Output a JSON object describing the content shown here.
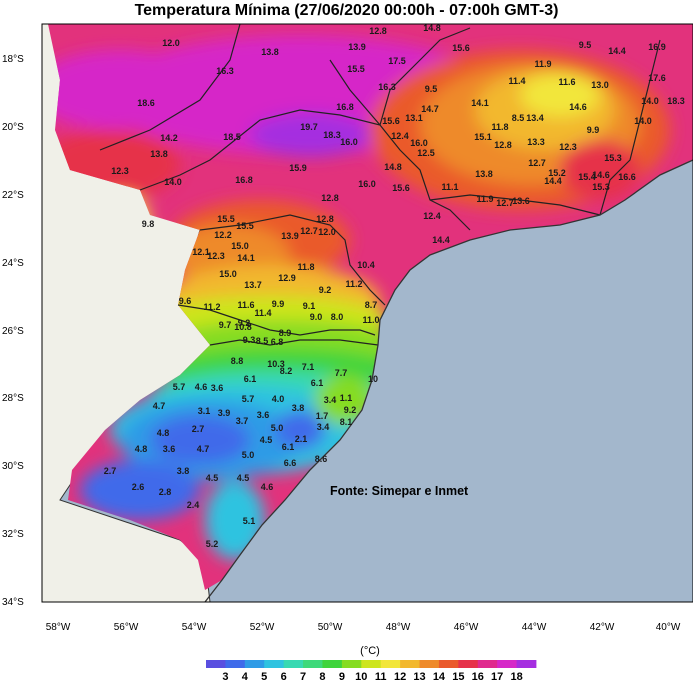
{
  "title": "Temperatura Mínima (27/06/2020 00:00h - 07:00h GMT-3)",
  "source": "Fonte: Simepar e Inmet",
  "unit_label": "(°C)",
  "lat_ticks": [
    "18°S",
    "20°S",
    "22°S",
    "24°S",
    "26°S",
    "28°S",
    "30°S",
    "32°S",
    "34°S"
  ],
  "lon_ticks": [
    "58°W",
    "56°W",
    "54°W",
    "52°W",
    "50°W",
    "48°W",
    "46°W",
    "44°W",
    "42°W",
    "40°W"
  ],
  "colorbar": {
    "labels": [
      "3",
      "4",
      "5",
      "6",
      "7",
      "8",
      "9",
      "10",
      "11",
      "12",
      "13",
      "14",
      "15",
      "16",
      "17",
      "18"
    ],
    "colors": [
      "#5a4fe0",
      "#3f6bea",
      "#2f9be6",
      "#2fc3e0",
      "#38d9b2",
      "#3ed97a",
      "#3fd43c",
      "#86dc22",
      "#cde51e",
      "#f2e63a",
      "#f2b82e",
      "#ee8a2a",
      "#ea5a2c",
      "#e6324a",
      "#e02a8e",
      "#d628c8",
      "#a52ee0"
    ]
  },
  "colors": {
    "ocean": "#a3b7cc",
    "land_outside": "#f0f0e8",
    "border": "#333333"
  },
  "stations": [
    {
      "t": "12.8"
    },
    {
      "t": "14.8"
    },
    {
      "t": "12.0"
    },
    {
      "t": "13.8"
    },
    {
      "t": "13.9"
    },
    {
      "t": "15.6"
    },
    {
      "t": "9.5"
    },
    {
      "t": "14.4"
    },
    {
      "t": "16.9"
    },
    {
      "t": "17.5"
    },
    {
      "t": "11.9"
    },
    {
      "t": "15.5"
    },
    {
      "t": "17.6"
    },
    {
      "t": "16.3"
    },
    {
      "t": "18.6"
    },
    {
      "t": "16.3"
    },
    {
      "t": "9.5"
    },
    {
      "t": "11.4"
    },
    {
      "t": "11.6"
    },
    {
      "t": "13.0"
    },
    {
      "t": "14.0"
    },
    {
      "t": "18.3"
    },
    {
      "t": "16.8"
    },
    {
      "t": "14.1"
    },
    {
      "t": "14.7"
    },
    {
      "t": "14.6"
    },
    {
      "t": "19.7"
    },
    {
      "t": "18.3"
    },
    {
      "t": "18.5"
    },
    {
      "t": "15.6"
    },
    {
      "t": "13.1"
    },
    {
      "t": "8.5"
    },
    {
      "t": "13.4"
    },
    {
      "t": "14.0"
    },
    {
      "t": "14.2"
    },
    {
      "t": "16.0"
    },
    {
      "t": "12.4"
    },
    {
      "t": "15.1"
    },
    {
      "t": "11.8"
    },
    {
      "t": "9.9"
    },
    {
      "t": "16.0"
    },
    {
      "t": "13.8"
    },
    {
      "t": "12.5"
    },
    {
      "t": "12.8"
    },
    {
      "t": "13.3"
    },
    {
      "t": "12.3"
    },
    {
      "t": "15.9"
    },
    {
      "t": "14.8"
    },
    {
      "t": "12.7"
    },
    {
      "t": "15.3"
    },
    {
      "t": "12.3"
    },
    {
      "t": "14.0"
    },
    {
      "t": "16.8"
    },
    {
      "t": "16.0"
    },
    {
      "t": "15.6"
    },
    {
      "t": "11.1"
    },
    {
      "t": "13.8"
    },
    {
      "t": "15.2"
    },
    {
      "t": "14.4"
    },
    {
      "t": "15.4"
    },
    {
      "t": "12.8"
    },
    {
      "t": "14.6"
    },
    {
      "t": "15.3"
    },
    {
      "t": "16.6"
    },
    {
      "t": "11.9"
    },
    {
      "t": "12.7"
    },
    {
      "t": "13.6"
    },
    {
      "t": "15.5"
    },
    {
      "t": "12.8"
    },
    {
      "t": "12.4"
    },
    {
      "t": "9.8"
    },
    {
      "t": "15.5"
    },
    {
      "t": "13.9"
    },
    {
      "t": "12.7"
    },
    {
      "t": "12.0"
    },
    {
      "t": "14.4"
    },
    {
      "t": "12.2"
    },
    {
      "t": "15.0"
    },
    {
      "t": "14.1"
    },
    {
      "t": "10.4"
    },
    {
      "t": "12.1"
    },
    {
      "t": "12.3"
    },
    {
      "t": "15.0"
    },
    {
      "t": "11.8"
    },
    {
      "t": "12.9"
    },
    {
      "t": "11.2"
    },
    {
      "t": "13.7"
    },
    {
      "t": "9.2"
    },
    {
      "t": "9.6"
    },
    {
      "t": "11.2"
    },
    {
      "t": "11.6"
    },
    {
      "t": "9.9"
    },
    {
      "t": "9.1"
    },
    {
      "t": "8.7"
    },
    {
      "t": "11.4"
    },
    {
      "t": "9.0"
    },
    {
      "t": "8.0"
    },
    {
      "t": "11.0"
    },
    {
      "t": "9.7"
    },
    {
      "t": "10.8"
    },
    {
      "t": "9.2"
    },
    {
      "t": "8.9"
    },
    {
      "t": "9.3"
    },
    {
      "t": "8.5"
    },
    {
      "t": "6.8"
    },
    {
      "t": "8.8"
    },
    {
      "t": "10.3"
    },
    {
      "t": "7.1"
    },
    {
      "t": "8.2"
    },
    {
      "t": "7.7"
    },
    {
      "t": "6.1"
    },
    {
      "t": "6.1"
    },
    {
      "t": "10"
    },
    {
      "t": "5.7"
    },
    {
      "t": "4.6"
    },
    {
      "t": "3.6"
    },
    {
      "t": "5.7"
    },
    {
      "t": "4.0"
    },
    {
      "t": "3.4"
    },
    {
      "t": "1.1"
    },
    {
      "t": "4.7"
    },
    {
      "t": "3.1"
    },
    {
      "t": "3.9"
    },
    {
      "t": "3.6"
    },
    {
      "t": "3.8"
    },
    {
      "t": "3.7"
    },
    {
      "t": "9.2"
    },
    {
      "t": "1.7"
    },
    {
      "t": "2.7"
    },
    {
      "t": "5.0"
    },
    {
      "t": "3.4"
    },
    {
      "t": "8.1"
    },
    {
      "t": "4.8"
    },
    {
      "t": "4.5"
    },
    {
      "t": "2.1"
    },
    {
      "t": "4.8"
    },
    {
      "t": "3.6"
    },
    {
      "t": "4.7"
    },
    {
      "t": "5.0"
    },
    {
      "t": "6.1"
    },
    {
      "t": "8.6"
    },
    {
      "t": "3.8"
    },
    {
      "t": "4.5"
    },
    {
      "t": "4.5"
    },
    {
      "t": "6.6"
    },
    {
      "t": "2.7"
    },
    {
      "t": "2.6"
    },
    {
      "t": "2.8"
    },
    {
      "t": "4.6"
    },
    {
      "t": "2.4"
    },
    {
      "t": "5.1"
    },
    {
      "t": "5.2"
    }
  ]
}
